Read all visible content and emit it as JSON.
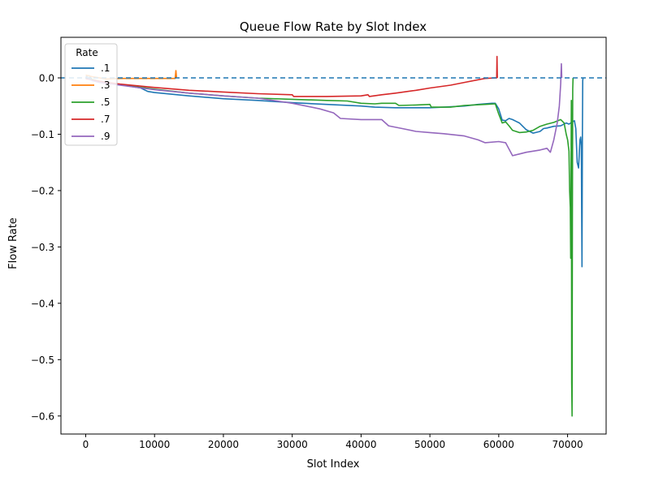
{
  "chart_data": {
    "type": "line",
    "title": "Queue Flow Rate by Slot Index",
    "xlabel": "Slot Index",
    "ylabel": "Flow Rate",
    "xlim": [
      -3600,
      75600
    ],
    "ylim": [
      -0.632,
      0.072
    ],
    "xticks": [
      0,
      10000,
      20000,
      30000,
      40000,
      50000,
      60000,
      70000
    ],
    "xtick_labels": [
      "0",
      "10000",
      "20000",
      "30000",
      "40000",
      "50000",
      "60000",
      "70000"
    ],
    "yticks": [
      0.0,
      -0.1,
      -0.2,
      -0.3,
      -0.4,
      -0.5,
      -0.6
    ],
    "ytick_labels": [
      "0.0",
      "−0.1",
      "−0.2",
      "−0.3",
      "−0.4",
      "−0.5",
      "−0.6"
    ],
    "grid": false,
    "legend": {
      "title": "Rate",
      "placement": "top-left"
    },
    "reference_line": {
      "y": 0.0,
      "style": "dashed",
      "color": "#1f77b4"
    },
    "series": [
      {
        "name": ".1",
        "color": "#1f77b4",
        "points": [
          [
            0,
            0.002
          ],
          [
            500,
            0.004
          ],
          [
            1000,
            -0.004
          ],
          [
            2000,
            -0.007
          ],
          [
            5000,
            -0.012
          ],
          [
            8000,
            -0.018
          ],
          [
            9000,
            -0.024
          ],
          [
            10000,
            -0.026
          ],
          [
            15000,
            -0.032
          ],
          [
            20000,
            -0.037
          ],
          [
            25000,
            -0.04
          ],
          [
            30000,
            -0.044
          ],
          [
            35000,
            -0.047
          ],
          [
            40000,
            -0.05
          ],
          [
            42000,
            -0.052
          ],
          [
            45000,
            -0.053
          ],
          [
            50000,
            -0.053
          ],
          [
            52000,
            -0.052
          ],
          [
            55000,
            -0.05
          ],
          [
            57000,
            -0.047
          ],
          [
            59000,
            -0.045
          ],
          [
            59500,
            -0.045
          ],
          [
            60000,
            -0.055
          ],
          [
            60500,
            -0.075
          ],
          [
            61000,
            -0.076
          ],
          [
            61500,
            -0.072
          ],
          [
            62000,
            -0.074
          ],
          [
            63000,
            -0.08
          ],
          [
            64000,
            -0.092
          ],
          [
            65000,
            -0.098
          ],
          [
            66000,
            -0.095
          ],
          [
            66500,
            -0.09
          ],
          [
            67000,
            -0.089
          ],
          [
            68000,
            -0.086
          ],
          [
            69000,
            -0.085
          ],
          [
            69800,
            -0.08
          ],
          [
            70200,
            -0.082
          ],
          [
            70700,
            -0.078
          ],
          [
            71000,
            -0.076
          ],
          [
            71200,
            -0.09
          ],
          [
            71400,
            -0.15
          ],
          [
            71600,
            -0.16
          ],
          [
            71800,
            -0.11
          ],
          [
            71900,
            -0.105
          ],
          [
            72000,
            -0.12
          ],
          [
            72050,
            -0.24
          ],
          [
            72100,
            -0.335
          ],
          [
            72150,
            -0.1
          ],
          [
            72200,
            -0.005
          ],
          [
            72250,
            0.0
          ]
        ]
      },
      {
        "name": ".3",
        "color": "#ff7f0e",
        "points": [
          [
            0,
            0.005
          ],
          [
            1000,
            0.002
          ],
          [
            3000,
            -0.002
          ],
          [
            5000,
            -0.001
          ],
          [
            8000,
            -0.001
          ],
          [
            10000,
            -0.001
          ],
          [
            12000,
            -0.001
          ],
          [
            13000,
            -0.001
          ],
          [
            13100,
            0.013
          ],
          [
            13200,
            0.0
          ]
        ]
      },
      {
        "name": ".5",
        "color": "#2ca02c",
        "points": [
          [
            0,
            -0.001
          ],
          [
            1000,
            -0.003
          ],
          [
            2000,
            -0.006
          ],
          [
            5000,
            -0.012
          ],
          [
            10000,
            -0.02
          ],
          [
            15000,
            -0.027
          ],
          [
            20000,
            -0.032
          ],
          [
            25000,
            -0.036
          ],
          [
            30000,
            -0.038
          ],
          [
            35000,
            -0.04
          ],
          [
            38000,
            -0.041
          ],
          [
            40000,
            -0.045
          ],
          [
            42000,
            -0.046
          ],
          [
            43000,
            -0.045
          ],
          [
            45000,
            -0.045
          ],
          [
            45500,
            -0.049
          ],
          [
            48000,
            -0.048
          ],
          [
            50000,
            -0.047
          ],
          [
            50200,
            -0.052
          ],
          [
            53000,
            -0.052
          ],
          [
            55000,
            -0.049
          ],
          [
            58000,
            -0.047
          ],
          [
            59500,
            -0.046
          ],
          [
            60000,
            -0.064
          ],
          [
            60500,
            -0.08
          ],
          [
            61000,
            -0.078
          ],
          [
            61500,
            -0.085
          ],
          [
            62000,
            -0.093
          ],
          [
            63000,
            -0.097
          ],
          [
            64000,
            -0.096
          ],
          [
            65000,
            -0.093
          ],
          [
            66000,
            -0.086
          ],
          [
            67000,
            -0.082
          ],
          [
            68000,
            -0.079
          ],
          [
            69000,
            -0.074
          ],
          [
            69500,
            -0.08
          ],
          [
            69800,
            -0.1
          ],
          [
            70000,
            -0.11
          ],
          [
            70200,
            -0.13
          ],
          [
            70300,
            -0.2
          ],
          [
            70400,
            -0.23
          ],
          [
            70450,
            -0.32
          ],
          [
            70500,
            -0.18
          ],
          [
            70550,
            -0.04
          ],
          [
            70600,
            -0.54
          ],
          [
            70650,
            -0.6
          ],
          [
            70700,
            -0.25
          ],
          [
            70750,
            -0.02
          ],
          [
            70800,
            0.0
          ]
        ]
      },
      {
        "name": ".7",
        "color": "#d62728",
        "points": [
          [
            0,
            -0.001
          ],
          [
            1000,
            -0.004
          ],
          [
            3000,
            -0.008
          ],
          [
            5000,
            -0.011
          ],
          [
            10000,
            -0.017
          ],
          [
            15000,
            -0.022
          ],
          [
            20000,
            -0.025
          ],
          [
            25000,
            -0.028
          ],
          [
            30000,
            -0.03
          ],
          [
            30200,
            -0.033
          ],
          [
            35000,
            -0.033
          ],
          [
            40000,
            -0.032
          ],
          [
            41000,
            -0.03
          ],
          [
            41200,
            -0.033
          ],
          [
            43000,
            -0.03
          ],
          [
            45000,
            -0.027
          ],
          [
            48000,
            -0.022
          ],
          [
            50000,
            -0.018
          ],
          [
            53000,
            -0.013
          ],
          [
            55000,
            -0.008
          ],
          [
            58000,
            -0.001
          ],
          [
            59500,
            0.0
          ],
          [
            59700,
            0.0
          ],
          [
            59750,
            0.038
          ],
          [
            59800,
            0.0
          ]
        ]
      },
      {
        "name": ".9",
        "color": "#9467bd",
        "points": [
          [
            0,
            0.001
          ],
          [
            500,
            -0.002
          ],
          [
            1000,
            -0.005
          ],
          [
            2000,
            -0.008
          ],
          [
            5000,
            -0.013
          ],
          [
            10000,
            -0.021
          ],
          [
            15000,
            -0.027
          ],
          [
            20000,
            -0.032
          ],
          [
            25000,
            -0.036
          ],
          [
            30000,
            -0.045
          ],
          [
            32000,
            -0.05
          ],
          [
            34000,
            -0.055
          ],
          [
            36000,
            -0.062
          ],
          [
            37000,
            -0.072
          ],
          [
            40000,
            -0.074
          ],
          [
            43000,
            -0.074
          ],
          [
            44000,
            -0.085
          ],
          [
            46000,
            -0.09
          ],
          [
            48000,
            -0.095
          ],
          [
            50000,
            -0.097
          ],
          [
            52000,
            -0.099
          ],
          [
            55000,
            -0.103
          ],
          [
            57000,
            -0.11
          ],
          [
            58000,
            -0.115
          ],
          [
            60000,
            -0.113
          ],
          [
            61000,
            -0.115
          ],
          [
            62000,
            -0.138
          ],
          [
            63000,
            -0.135
          ],
          [
            64000,
            -0.132
          ],
          [
            65000,
            -0.13
          ],
          [
            66000,
            -0.128
          ],
          [
            67000,
            -0.125
          ],
          [
            67500,
            -0.132
          ],
          [
            68000,
            -0.11
          ],
          [
            68500,
            -0.08
          ],
          [
            68800,
            -0.05
          ],
          [
            69000,
            -0.01
          ],
          [
            69100,
            0.025
          ],
          [
            69150,
            0.0
          ]
        ]
      }
    ]
  }
}
